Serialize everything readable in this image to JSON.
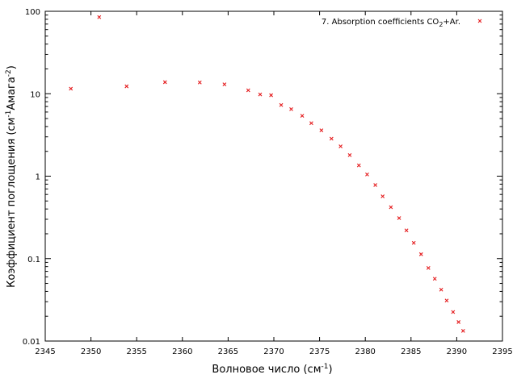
{
  "chart_data": {
    "type": "scatter",
    "title": "",
    "xlabel": "Волновое число (см",
    "xlabel_sup": "-1",
    "xlabel_end": ")",
    "ylabel": "Коэффициент поглощения (см",
    "ylabel_sup1": "-1",
    "ylabel_mid": "Амага",
    "ylabel_sup2": "-2",
    "ylabel_end": ")",
    "xlim": [
      2345,
      2395
    ],
    "ylim": [
      0.01,
      100
    ],
    "yscale": "log",
    "grid": false,
    "legend_position": "top-right",
    "xticks": [
      "2345",
      "2350",
      "2355",
      "2360",
      "2365",
      "2370",
      "2375",
      "2380",
      "2385",
      "2390",
      "2395"
    ],
    "yticks": [
      "0.01",
      "0.1",
      "1",
      "10",
      "100"
    ],
    "series": [
      {
        "name": "7. Absorption coefficients CO",
        "name_sub": "2",
        "name_end": "+Ar.",
        "color": "#e41a1c",
        "marker": "x",
        "points": [
          [
            2347.8,
            11.5
          ],
          [
            2350.9,
            85
          ],
          [
            2353.9,
            12.3
          ],
          [
            2358.1,
            13.8
          ],
          [
            2361.9,
            13.7
          ],
          [
            2364.6,
            13.0
          ],
          [
            2367.2,
            11.0
          ],
          [
            2368.5,
            9.8
          ],
          [
            2369.7,
            9.6
          ],
          [
            2370.8,
            7.3
          ],
          [
            2371.9,
            6.5
          ],
          [
            2373.1,
            5.4
          ],
          [
            2374.1,
            4.4
          ],
          [
            2375.2,
            3.6
          ],
          [
            2376.3,
            2.85
          ],
          [
            2377.3,
            2.3
          ],
          [
            2378.3,
            1.8
          ],
          [
            2379.3,
            1.35
          ],
          [
            2380.2,
            1.05
          ],
          [
            2381.1,
            0.78
          ],
          [
            2381.9,
            0.57
          ],
          [
            2382.8,
            0.42
          ],
          [
            2383.7,
            0.31
          ],
          [
            2384.5,
            0.22
          ],
          [
            2385.3,
            0.155
          ],
          [
            2386.1,
            0.113
          ],
          [
            2386.9,
            0.077
          ],
          [
            2387.6,
            0.057
          ],
          [
            2388.3,
            0.042
          ],
          [
            2388.9,
            0.031
          ],
          [
            2389.6,
            0.0225
          ],
          [
            2390.2,
            0.017
          ],
          [
            2390.7,
            0.0133
          ]
        ]
      }
    ]
  }
}
